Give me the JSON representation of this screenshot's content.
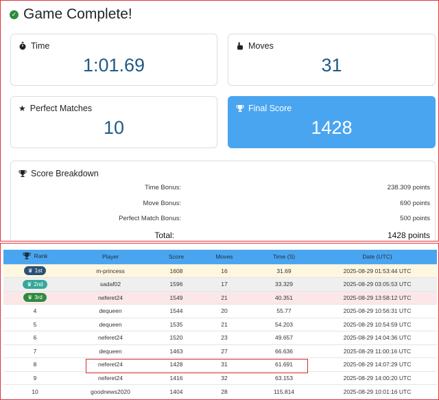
{
  "header": {
    "title": "Game Complete!"
  },
  "stats": {
    "time": {
      "label": "Time",
      "value": "1:01.69"
    },
    "moves": {
      "label": "Moves",
      "value": "31"
    },
    "perfect": {
      "label": "Perfect Matches",
      "value": "10"
    },
    "final": {
      "label": "Final Score",
      "value": "1428"
    }
  },
  "breakdown": {
    "label": "Score Breakdown",
    "time_bonus": {
      "label": "Time Bonus:",
      "value": "238.309 points"
    },
    "move_bonus": {
      "label": "Move Bonus:",
      "value": "690 points"
    },
    "perfect_bonus": {
      "label": "Perfect Match Bonus:",
      "value": "500 points"
    },
    "total": {
      "label": "Total:",
      "value": "1428 points"
    }
  },
  "leaderboard": {
    "headers": {
      "rank": "Rank",
      "player": "Player",
      "score": "Score",
      "moves": "Moves",
      "time": "Time (S)",
      "date": "Date (UTC)"
    },
    "rows": [
      {
        "rank": "1st",
        "player": "m-princess",
        "score": "1608",
        "moves": "16",
        "time": "31.69",
        "date": "2025-08-29 01:53:44 UTC"
      },
      {
        "rank": "2nd",
        "player": "sadaf02",
        "score": "1596",
        "moves": "17",
        "time": "33.329",
        "date": "2025-08-29 03:05:53 UTC"
      },
      {
        "rank": "3rd",
        "player": "neferet24",
        "score": "1549",
        "moves": "21",
        "time": "40.351",
        "date": "2025-08-29 13:58:12 UTC"
      },
      {
        "rank": "4",
        "player": "dequeen",
        "score": "1544",
        "moves": "20",
        "time": "55.77",
        "date": "2025-08-29 10:56:31 UTC"
      },
      {
        "rank": "5",
        "player": "dequeen",
        "score": "1535",
        "moves": "21",
        "time": "54.203",
        "date": "2025-08-29 10:54:59 UTC"
      },
      {
        "rank": "6",
        "player": "neferet24",
        "score": "1520",
        "moves": "23",
        "time": "49.657",
        "date": "2025-08-29 14:04:36 UTC"
      },
      {
        "rank": "7",
        "player": "dequeen",
        "score": "1463",
        "moves": "27",
        "time": "66.636",
        "date": "2025-08-29 11:00:16 UTC"
      },
      {
        "rank": "8",
        "player": "neferet24",
        "score": "1428",
        "moves": "31",
        "time": "61.691",
        "date": "2025-08-29 14:07:29 UTC"
      },
      {
        "rank": "9",
        "player": "neferet24",
        "score": "1416",
        "moves": "32",
        "time": "63.153",
        "date": "2025-08-29 14:00:20 UTC"
      },
      {
        "rank": "10",
        "player": "goodnews2020",
        "score": "1404",
        "moves": "28",
        "time": "115.814",
        "date": "2025-08-29 10:01:16 UTC"
      }
    ]
  }
}
